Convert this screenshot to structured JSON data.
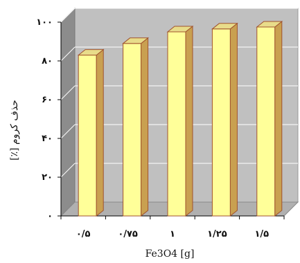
{
  "chart_data": {
    "type": "bar",
    "categories": [
      "۰/۵",
      "۰/۷۵",
      "۱",
      "۱/۲۵",
      "۱/۵"
    ],
    "values": [
      83,
      89,
      95,
      96.5,
      97.5
    ],
    "ytick_labels": [
      "۰",
      "۲۰",
      "۴۰",
      "۶۰",
      "۸۰",
      "۱۰۰"
    ],
    "ylim": [
      0,
      100
    ],
    "xlabel": "Fe3O4 [g]",
    "ylabel": "حذف کروم [٪]",
    "grid": true,
    "legend": "none",
    "colors": {
      "bar_front": "#ffff99",
      "bar_side": "#c9a050",
      "bar_top": "#e8dc8a",
      "bar_edge": "#a0522d",
      "wall_back": "#c0c0c0",
      "wall_side": "#8c8c8c",
      "floor": "#b0b0b0",
      "grid": "#ffffff"
    }
  }
}
